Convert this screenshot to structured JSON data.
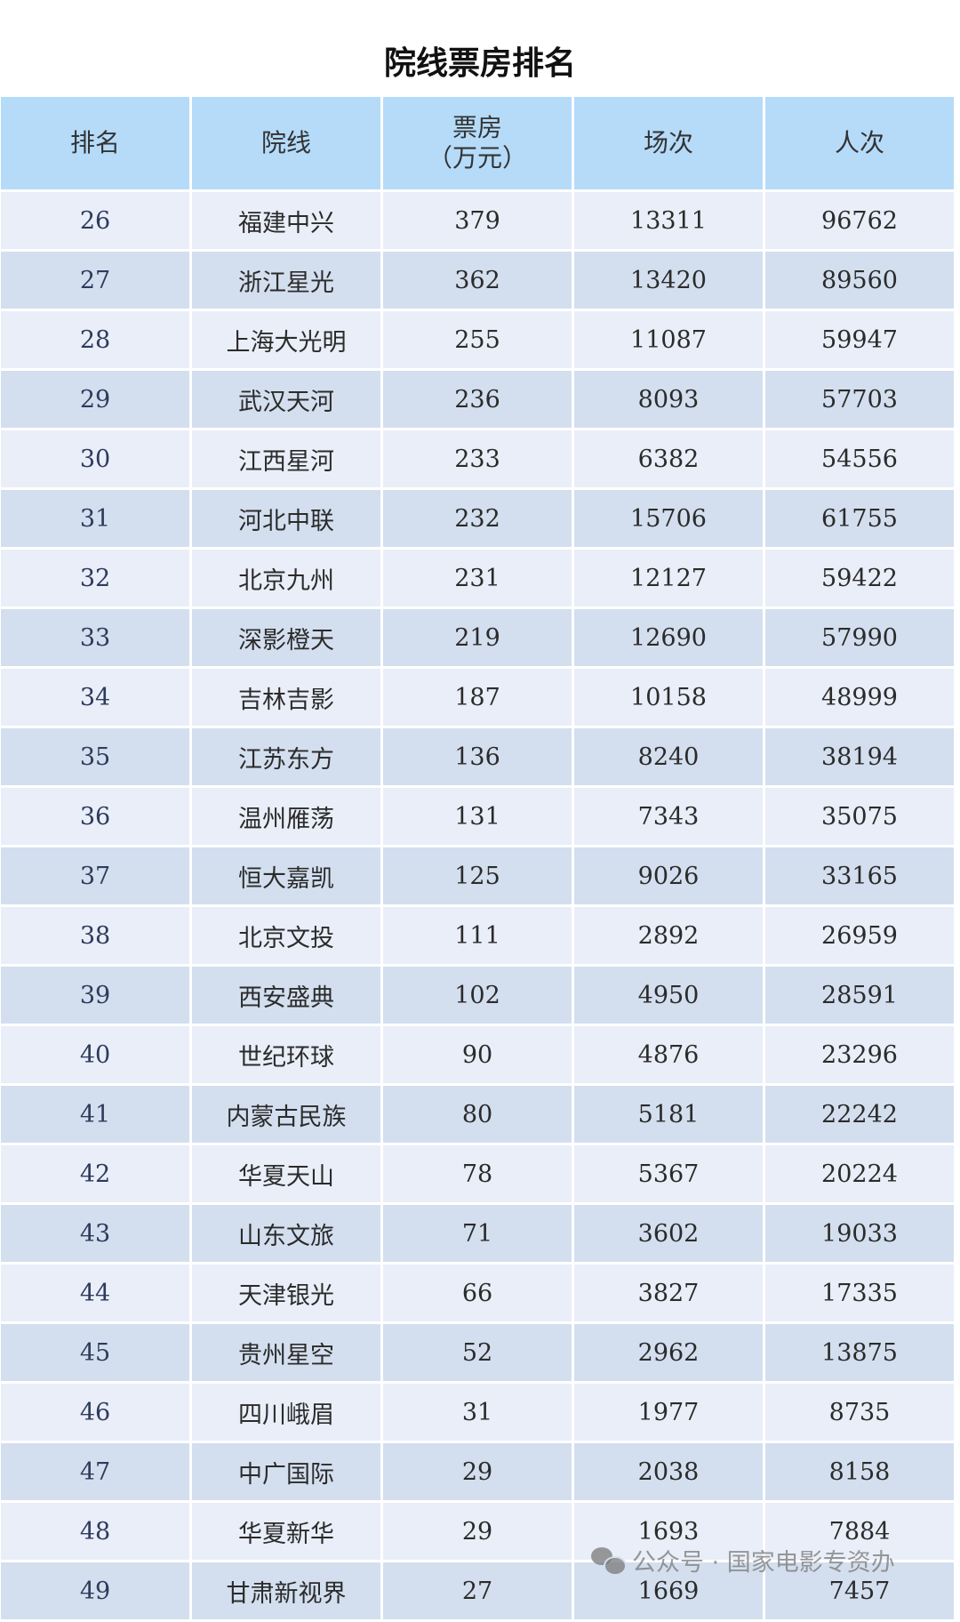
{
  "title": "院线票房排名",
  "columns": [
    "排名",
    "院线",
    "票房\n（万元）",
    "场次",
    "人次"
  ],
  "column_box_office_line1": "票房",
  "column_box_office_line2": "（万元）",
  "rows": [
    [
      "26",
      "福建中兴",
      "379",
      "13311",
      "96762"
    ],
    [
      "27",
      "浙江星光",
      "362",
      "13420",
      "89560"
    ],
    [
      "28",
      "上海大光明",
      "255",
      "11087",
      "59947"
    ],
    [
      "29",
      "武汉天河",
      "236",
      "8093",
      "57703"
    ],
    [
      "30",
      "江西星河",
      "233",
      "6382",
      "54556"
    ],
    [
      "31",
      "河北中联",
      "232",
      "15706",
      "61755"
    ],
    [
      "32",
      "北京九州",
      "231",
      "12127",
      "59422"
    ],
    [
      "33",
      "深影橙天",
      "219",
      "12690",
      "57990"
    ],
    [
      "34",
      "吉林吉影",
      "187",
      "10158",
      "48999"
    ],
    [
      "35",
      "江苏东方",
      "136",
      "8240",
      "38194"
    ],
    [
      "36",
      "温州雁荡",
      "131",
      "7343",
      "35075"
    ],
    [
      "37",
      "恒大嘉凯",
      "125",
      "9026",
      "33165"
    ],
    [
      "38",
      "北京文投",
      "111",
      "2892",
      "26959"
    ],
    [
      "39",
      "西安盛典",
      "102",
      "4950",
      "28591"
    ],
    [
      "40",
      "世纪环球",
      "90",
      "4876",
      "23296"
    ],
    [
      "41",
      "内蒙古民族",
      "80",
      "5181",
      "22242"
    ],
    [
      "42",
      "华夏天山",
      "78",
      "5367",
      "20224"
    ],
    [
      "43",
      "山东文旅",
      "71",
      "3602",
      "19033"
    ],
    [
      "44",
      "天津银光",
      "66",
      "3827",
      "17335"
    ],
    [
      "45",
      "贵州星空",
      "52",
      "2962",
      "13875"
    ],
    [
      "46",
      "四川峨眉",
      "31",
      "1977",
      "8735"
    ],
    [
      "47",
      "中广国际",
      "29",
      "2038",
      "8158"
    ],
    [
      "48",
      "华夏新华",
      "29",
      "1693",
      "7884"
    ],
    [
      "49",
      "甘肃新视界",
      "27",
      "1669",
      "7457"
    ]
  ],
  "watermark": "公众号 · 国家电影专资办",
  "colors": {
    "header": "#b5dbf9",
    "row_light": "#e9eef8",
    "row_dark": "#d3dfef"
  }
}
